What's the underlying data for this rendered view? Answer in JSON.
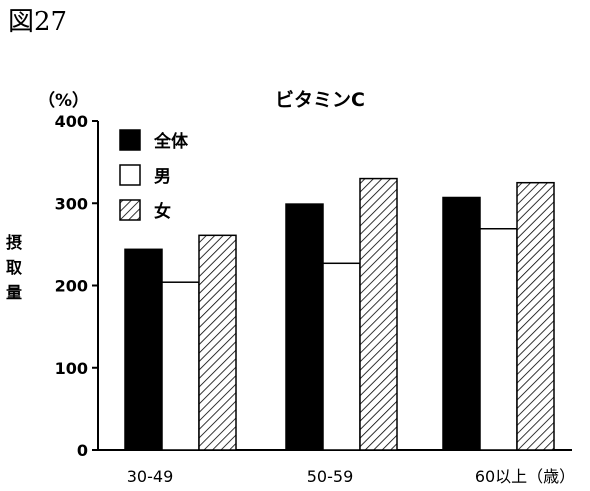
{
  "figure_label": "図27",
  "chart_data": {
    "type": "bar",
    "title": "ビタミンC",
    "unit_label": "（%）",
    "ylabel": "摂取量",
    "xlabel": "",
    "categories": [
      "30-49",
      "50-59",
      "60以上（歳）"
    ],
    "series": [
      {
        "name": "全体",
        "values": [
          244,
          299,
          307
        ],
        "fill": "solid",
        "color": "#000000"
      },
      {
        "name": "男",
        "values": [
          204,
          227,
          269
        ],
        "fill": "white",
        "color": "#ffffff"
      },
      {
        "name": "女",
        "values": [
          261,
          330,
          325
        ],
        "fill": "hatched",
        "color": "#000000"
      }
    ],
    "ylim": [
      0,
      400
    ],
    "yticks": [
      0,
      100,
      200,
      300,
      400
    ],
    "grid": false,
    "legend_position": "top-left"
  }
}
